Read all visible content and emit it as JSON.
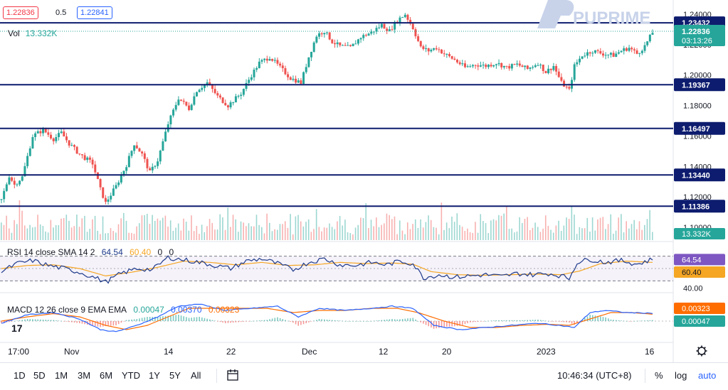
{
  "header": {
    "sell_price": "1.22836",
    "spread": "0.5",
    "buy_price": "1.22841",
    "vol_label": "Vol",
    "vol_value": "13.332K",
    "brand": "PUPRIME"
  },
  "indicators": {
    "rsi": {
      "label": "RSI 14 close SMA 14 2",
      "v1": "64.54",
      "v2": "60.40",
      "v3": "0",
      "v4": "0"
    },
    "macd": {
      "label": "MACD 12 26 close 9 EMA EMA",
      "v1": "0.00047",
      "v2": "0.00370",
      "v3": "0.00323"
    }
  },
  "colors": {
    "up": "#26a69a",
    "down": "#ef5350",
    "level": "#0d1c6e",
    "rsi": "#1e3a8a",
    "rsi_sma": "#f5a623",
    "macd": "#2962ff",
    "signal": "#ff6d00"
  },
  "chart_data": {
    "type": "candlestick",
    "instrument_price_last": 1.22836,
    "countdown": "03:13:26",
    "price_axis_ticks": [
      "1.24000",
      "1.22000",
      "1.20000",
      "1.18000",
      "1.16000",
      "1.14000",
      "1.12000",
      "1.10000"
    ],
    "price_range": [
      1.095,
      1.245
    ],
    "horizontal_levels": [
      1.23432,
      1.19367,
      1.16497,
      1.1344,
      1.11386
    ],
    "time_axis_labels": [
      "17:00",
      "Nov",
      "14",
      "22",
      "Dec",
      "12",
      "20",
      "2023",
      "16"
    ],
    "path_price": [
      [
        0,
        1.118
      ],
      [
        3,
        1.134
      ],
      [
        5,
        1.128
      ],
      [
        8,
        1.133
      ],
      [
        12,
        1.16
      ],
      [
        16,
        1.164
      ],
      [
        20,
        1.158
      ],
      [
        23,
        1.162
      ],
      [
        26,
        1.155
      ],
      [
        30,
        1.148
      ],
      [
        35,
        1.142
      ],
      [
        38,
        1.125
      ],
      [
        40,
        1.116
      ],
      [
        44,
        1.127
      ],
      [
        48,
        1.141
      ],
      [
        51,
        1.155
      ],
      [
        54,
        1.148
      ],
      [
        57,
        1.136
      ],
      [
        60,
        1.144
      ],
      [
        64,
        1.168
      ],
      [
        68,
        1.185
      ],
      [
        72,
        1.178
      ],
      [
        75,
        1.19
      ],
      [
        79,
        1.195
      ],
      [
        83,
        1.186
      ],
      [
        87,
        1.18
      ],
      [
        92,
        1.188
      ],
      [
        96,
        1.2
      ],
      [
        99,
        1.208
      ],
      [
        103,
        1.212
      ],
      [
        107,
        1.205
      ],
      [
        111,
        1.198
      ],
      [
        115,
        1.195
      ],
      [
        118,
        1.212
      ],
      [
        121,
        1.226
      ],
      [
        124,
        1.229
      ],
      [
        127,
        1.222
      ],
      [
        130,
        1.219
      ],
      [
        134,
        1.218
      ],
      [
        138,
        1.225
      ],
      [
        142,
        1.228
      ],
      [
        146,
        1.233
      ],
      [
        149,
        1.229
      ],
      [
        152,
        1.236
      ],
      [
        155,
        1.24
      ],
      [
        158,
        1.231
      ],
      [
        161,
        1.218
      ],
      [
        164,
        1.216
      ],
      [
        167,
        1.218
      ],
      [
        170,
        1.214
      ],
      [
        174,
        1.21
      ],
      [
        178,
        1.205
      ],
      [
        182,
        1.207
      ],
      [
        186,
        1.206
      ],
      [
        190,
        1.208
      ],
      [
        194,
        1.205
      ],
      [
        198,
        1.207
      ],
      [
        202,
        1.204
      ],
      [
        206,
        1.208
      ],
      [
        209,
        1.202
      ],
      [
        212,
        1.206
      ],
      [
        215,
        1.195
      ],
      [
        218,
        1.19
      ],
      [
        220,
        1.206
      ],
      [
        223,
        1.213
      ],
      [
        227,
        1.216
      ],
      [
        231,
        1.214
      ],
      [
        235,
        1.213
      ],
      [
        238,
        1.216
      ],
      [
        241,
        1.218
      ],
      [
        244,
        1.214
      ],
      [
        247,
        1.219
      ],
      [
        250,
        1.228
      ]
    ],
    "path_rsi": [
      [
        0,
        45
      ],
      [
        6,
        58
      ],
      [
        12,
        63
      ],
      [
        18,
        55
      ],
      [
        24,
        50
      ],
      [
        30,
        44
      ],
      [
        36,
        35
      ],
      [
        40,
        28
      ],
      [
        46,
        42
      ],
      [
        52,
        50
      ],
      [
        58,
        48
      ],
      [
        64,
        68
      ],
      [
        70,
        64
      ],
      [
        76,
        60
      ],
      [
        82,
        55
      ],
      [
        88,
        50
      ],
      [
        94,
        62
      ],
      [
        100,
        66
      ],
      [
        106,
        58
      ],
      [
        112,
        48
      ],
      [
        118,
        60
      ],
      [
        124,
        66
      ],
      [
        130,
        56
      ],
      [
        136,
        55
      ],
      [
        142,
        60
      ],
      [
        148,
        56
      ],
      [
        153,
        62
      ],
      [
        158,
        58
      ],
      [
        162,
        35
      ],
      [
        168,
        40
      ],
      [
        174,
        36
      ],
      [
        180,
        38
      ],
      [
        186,
        40
      ],
      [
        192,
        37
      ],
      [
        198,
        42
      ],
      [
        204,
        40
      ],
      [
        210,
        42
      ],
      [
        215,
        38
      ],
      [
        218,
        34
      ],
      [
        221,
        60
      ],
      [
        226,
        65
      ],
      [
        232,
        60
      ],
      [
        238,
        63
      ],
      [
        244,
        57
      ],
      [
        250,
        65
      ]
    ],
    "path_rsi_sma": [
      [
        0,
        50
      ],
      [
        10,
        55
      ],
      [
        20,
        56
      ],
      [
        30,
        50
      ],
      [
        40,
        38
      ],
      [
        50,
        44
      ],
      [
        60,
        52
      ],
      [
        70,
        62
      ],
      [
        80,
        60
      ],
      [
        90,
        56
      ],
      [
        100,
        60
      ],
      [
        110,
        55
      ],
      [
        120,
        56
      ],
      [
        130,
        60
      ],
      [
        140,
        58
      ],
      [
        150,
        59
      ],
      [
        158,
        57
      ],
      [
        165,
        45
      ],
      [
        175,
        40
      ],
      [
        185,
        39
      ],
      [
        195,
        40
      ],
      [
        205,
        41
      ],
      [
        215,
        40
      ],
      [
        222,
        46
      ],
      [
        230,
        58
      ],
      [
        240,
        62
      ],
      [
        250,
        60
      ]
    ],
    "path_macd": [
      [
        0,
        -0.001
      ],
      [
        10,
        0.003
      ],
      [
        20,
        0.004
      ],
      [
        30,
        0.001
      ],
      [
        38,
        -0.004
      ],
      [
        44,
        -0.005
      ],
      [
        52,
        -0.002
      ],
      [
        60,
        0.002
      ],
      [
        68,
        0.007
      ],
      [
        76,
        0.008
      ],
      [
        86,
        0.005
      ],
      [
        96,
        0.006
      ],
      [
        106,
        0.007
      ],
      [
        114,
        0.002
      ],
      [
        122,
        0.006
      ],
      [
        132,
        0.005
      ],
      [
        142,
        0.006
      ],
      [
        150,
        0.007
      ],
      [
        158,
        0.006
      ],
      [
        166,
        -0.002
      ],
      [
        176,
        -0.004
      ],
      [
        186,
        -0.003
      ],
      [
        196,
        -0.002
      ],
      [
        206,
        -0.001
      ],
      [
        214,
        -0.002
      ],
      [
        220,
        -0.003
      ],
      [
        226,
        0.004
      ],
      [
        232,
        0.005
      ],
      [
        240,
        0.004
      ],
      [
        250,
        0.0037
      ]
    ],
    "path_signal": [
      [
        0,
        0.0
      ],
      [
        10,
        0.002
      ],
      [
        20,
        0.0035
      ],
      [
        30,
        0.002
      ],
      [
        40,
        -0.002
      ],
      [
        48,
        -0.004
      ],
      [
        56,
        -0.002
      ],
      [
        64,
        0.002
      ],
      [
        72,
        0.006
      ],
      [
        82,
        0.006
      ],
      [
        92,
        0.006
      ],
      [
        102,
        0.006
      ],
      [
        112,
        0.004
      ],
      [
        122,
        0.005
      ],
      [
        132,
        0.005
      ],
      [
        142,
        0.006
      ],
      [
        152,
        0.006
      ],
      [
        160,
        0.004
      ],
      [
        170,
        0.0
      ],
      [
        180,
        -0.003
      ],
      [
        190,
        -0.003
      ],
      [
        200,
        -0.002
      ],
      [
        210,
        -0.0015
      ],
      [
        218,
        -0.002
      ],
      [
        226,
        0.001
      ],
      [
        234,
        0.004
      ],
      [
        242,
        0.004
      ],
      [
        250,
        0.00323
      ]
    ]
  },
  "right_axis_labels": {
    "rsi_ticks": [
      "40.00"
    ],
    "rsi_tag1": "64.54",
    "rsi_tag2": "60.40",
    "vol_tag": "13.332K",
    "macd_tag1": "0.00323",
    "macd_tag2": "0.00047"
  },
  "bottombar": {
    "ranges": [
      "1D",
      "5D",
      "1M",
      "3M",
      "6M",
      "YTD",
      "1Y",
      "5Y",
      "All"
    ],
    "time": "10:46:34 (UTC+8)",
    "percent": "%",
    "log": "log",
    "auto": "auto"
  }
}
